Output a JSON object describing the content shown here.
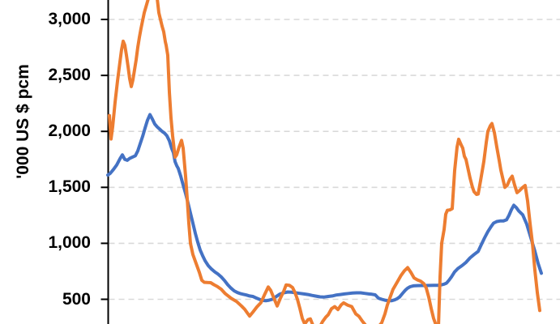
{
  "chart_data": {
    "type": "line",
    "title": "",
    "title_visible": false,
    "legend_visible": false,
    "ylabel": "'000 US $ pcm",
    "xlabel": "",
    "x_axis": {
      "labels_visible": false,
      "x_unit": "screenshot pixel column (x-axis tick labels are cropped out of view)"
    },
    "y_axis": {
      "tick_labels": [
        "3,000",
        "2,500",
        "2,000",
        "1,500",
        "1,000",
        "500"
      ],
      "tick_values": [
        3000,
        2500,
        2000,
        1500,
        1000,
        500
      ],
      "visible_value_range": [
        280,
        3175
      ]
    },
    "grid": {
      "horizontal": true,
      "vertical": false,
      "style": "dashed",
      "color": "#d9d9d9"
    },
    "axis_color": "#000000",
    "series": [
      {
        "name": "blue",
        "color": "#4472C4",
        "points": [
          [
            133,
            1610
          ],
          [
            136,
            1625
          ],
          [
            140,
            1660
          ],
          [
            144,
            1700
          ],
          [
            148,
            1755
          ],
          [
            151,
            1790
          ],
          [
            154,
            1750
          ],
          [
            157,
            1742
          ],
          [
            160,
            1758
          ],
          [
            164,
            1772
          ],
          [
            167,
            1782
          ],
          [
            170,
            1825
          ],
          [
            173,
            1890
          ],
          [
            176,
            1955
          ],
          [
            179,
            2030
          ],
          [
            182,
            2100
          ],
          [
            185,
            2150
          ],
          [
            188,
            2110
          ],
          [
            191,
            2065
          ],
          [
            194,
            2040
          ],
          [
            197,
            2020
          ],
          [
            200,
            2000
          ],
          [
            203,
            1985
          ],
          [
            206,
            1960
          ],
          [
            209,
            1915
          ],
          [
            212,
            1845
          ],
          [
            214,
            1810
          ],
          [
            216,
            1730
          ],
          [
            218,
            1695
          ],
          [
            220,
            1668
          ],
          [
            223,
            1600
          ],
          [
            226,
            1520
          ],
          [
            229,
            1445
          ],
          [
            232,
            1360
          ],
          [
            235,
            1270
          ],
          [
            238,
            1180
          ],
          [
            241,
            1090
          ],
          [
            244,
            1010
          ],
          [
            247,
            940
          ],
          [
            250,
            890
          ],
          [
            253,
            845
          ],
          [
            257,
            800
          ],
          [
            261,
            770
          ],
          [
            265,
            745
          ],
          [
            269,
            725
          ],
          [
            273,
            700
          ],
          [
            277,
            668
          ],
          [
            281,
            630
          ],
          [
            285,
            600
          ],
          [
            289,
            575
          ],
          [
            293,
            560
          ],
          [
            297,
            550
          ],
          [
            300,
            545
          ],
          [
            304,
            538
          ],
          [
            308,
            530
          ],
          [
            312,
            525
          ],
          [
            316,
            512
          ],
          [
            320,
            500
          ],
          [
            324,
            490
          ],
          [
            328,
            487
          ],
          [
            332,
            492
          ],
          [
            336,
            500
          ],
          [
            340,
            520
          ],
          [
            345,
            545
          ],
          [
            350,
            558
          ],
          [
            355,
            565
          ],
          [
            360,
            563
          ],
          [
            365,
            558
          ],
          [
            370,
            553
          ],
          [
            375,
            548
          ],
          [
            380,
            543
          ],
          [
            385,
            535
          ],
          [
            390,
            528
          ],
          [
            395,
            522
          ],
          [
            400,
            520
          ],
          [
            405,
            525
          ],
          [
            410,
            530
          ],
          [
            415,
            538
          ],
          [
            420,
            543
          ],
          [
            425,
            548
          ],
          [
            430,
            552
          ],
          [
            435,
            556
          ],
          [
            440,
            558
          ],
          [
            445,
            558
          ],
          [
            450,
            553
          ],
          [
            455,
            548
          ],
          [
            459,
            545
          ],
          [
            463,
            540
          ],
          [
            467,
            510
          ],
          [
            471,
            500
          ],
          [
            475,
            492
          ],
          [
            479,
            488
          ],
          [
            483,
            487
          ],
          [
            487,
            495
          ],
          [
            490,
            505
          ],
          [
            493,
            520
          ],
          [
            497,
            555
          ],
          [
            500,
            580
          ],
          [
            503,
            600
          ],
          [
            506,
            612
          ],
          [
            510,
            620
          ],
          [
            515,
            622
          ],
          [
            520,
            623
          ],
          [
            525,
            623
          ],
          [
            530,
            624
          ],
          [
            535,
            625
          ],
          [
            540,
            625
          ],
          [
            544,
            628
          ],
          [
            548,
            635
          ],
          [
            551,
            645
          ],
          [
            554,
            670
          ],
          [
            557,
            700
          ],
          [
            561,
            745
          ],
          [
            565,
            775
          ],
          [
            570,
            800
          ],
          [
            575,
            830
          ],
          [
            580,
            870
          ],
          [
            585,
            900
          ],
          [
            590,
            928
          ],
          [
            594,
            990
          ],
          [
            598,
            1050
          ],
          [
            602,
            1105
          ],
          [
            606,
            1150
          ],
          [
            609,
            1180
          ],
          [
            613,
            1195
          ],
          [
            617,
            1200
          ],
          [
            621,
            1200
          ],
          [
            625,
            1210
          ],
          [
            628,
            1250
          ],
          [
            631,
            1300
          ],
          [
            634,
            1340
          ],
          [
            637,
            1320
          ],
          [
            640,
            1290
          ],
          [
            645,
            1255
          ],
          [
            650,
            1170
          ],
          [
            655,
            1050
          ],
          [
            660,
            930
          ],
          [
            664,
            820
          ],
          [
            668,
            732
          ]
        ]
      },
      {
        "name": "orange",
        "color": "#ED7D31",
        "points": [
          [
            135,
            2142
          ],
          [
            137,
            1932
          ],
          [
            139,
            2040
          ],
          [
            142,
            2260
          ],
          [
            145,
            2450
          ],
          [
            148,
            2620
          ],
          [
            150,
            2730
          ],
          [
            152,
            2805
          ],
          [
            154,
            2770
          ],
          [
            156,
            2680
          ],
          [
            158,
            2580
          ],
          [
            160,
            2470
          ],
          [
            162,
            2400
          ],
          [
            164,
            2460
          ],
          [
            166,
            2550
          ],
          [
            168,
            2640
          ],
          [
            170,
            2750
          ],
          [
            172,
            2840
          ],
          [
            174,
            2920
          ],
          [
            176,
            2990
          ],
          [
            178,
            3060
          ],
          [
            180,
            3110
          ],
          [
            183,
            3185
          ],
          [
            186,
            3290
          ],
          [
            189,
            3340
          ],
          [
            192,
            3260
          ],
          [
            194,
            3185
          ],
          [
            196,
            3060
          ],
          [
            198,
            3000
          ],
          [
            200,
            2940
          ],
          [
            202,
            2890
          ],
          [
            204,
            2800
          ],
          [
            205,
            2770
          ],
          [
            207,
            2680
          ],
          [
            209,
            2350
          ],
          [
            211,
            2120
          ],
          [
            213,
            1960
          ],
          [
            216,
            1770
          ],
          [
            218,
            1790
          ],
          [
            221,
            1860
          ],
          [
            224,
            1920
          ],
          [
            226,
            1850
          ],
          [
            229,
            1600
          ],
          [
            231,
            1400
          ],
          [
            233,
            1180
          ],
          [
            235,
            1000
          ],
          [
            238,
            900
          ],
          [
            242,
            820
          ],
          [
            246,
            740
          ],
          [
            249,
            670
          ],
          [
            252,
            652
          ],
          [
            256,
            650
          ],
          [
            260,
            648
          ],
          [
            264,
            630
          ],
          [
            268,
            615
          ],
          [
            273,
            590
          ],
          [
            278,
            550
          ],
          [
            285,
            510
          ],
          [
            292,
            480
          ],
          [
            298,
            440
          ],
          [
            302,
            410
          ],
          [
            305,
            380
          ],
          [
            308,
            350
          ],
          [
            312,
            385
          ],
          [
            317,
            432
          ],
          [
            322,
            470
          ],
          [
            327,
            550
          ],
          [
            331,
            610
          ],
          [
            334,
            580
          ],
          [
            338,
            510
          ],
          [
            342,
            440
          ],
          [
            346,
            510
          ],
          [
            350,
            570
          ],
          [
            353,
            628
          ],
          [
            357,
            625
          ],
          [
            361,
            605
          ],
          [
            364,
            560
          ],
          [
            367,
            500
          ],
          [
            370,
            420
          ],
          [
            373,
            330
          ],
          [
            376,
            280
          ],
          [
            380,
            318
          ],
          [
            383,
            325
          ],
          [
            386,
            270
          ],
          [
            390,
            230
          ],
          [
            394,
            245
          ],
          [
            398,
            300
          ],
          [
            402,
            340
          ],
          [
            405,
            362
          ],
          [
            409,
            415
          ],
          [
            413,
            435
          ],
          [
            417,
            408
          ],
          [
            421,
            450
          ],
          [
            424,
            468
          ],
          [
            429,
            448
          ],
          [
            434,
            435
          ],
          [
            439,
            370
          ],
          [
            443,
            347
          ],
          [
            447,
            305
          ],
          [
            451,
            270
          ],
          [
            455,
            235
          ],
          [
            459,
            215
          ],
          [
            463,
            220
          ],
          [
            467,
            255
          ],
          [
            471,
            290
          ],
          [
            475,
            370
          ],
          [
            478,
            450
          ],
          [
            481,
            510
          ],
          [
            485,
            590
          ],
          [
            490,
            652
          ],
          [
            495,
            715
          ],
          [
            499,
            755
          ],
          [
            503,
            783
          ],
          [
            507,
            740
          ],
          [
            511,
            690
          ],
          [
            515,
            674
          ],
          [
            519,
            662
          ],
          [
            523,
            640
          ],
          [
            526,
            600
          ],
          [
            529,
            520
          ],
          [
            532,
            420
          ],
          [
            535,
            330
          ],
          [
            538,
            270
          ],
          [
            541,
            250
          ],
          [
            543,
            700
          ],
          [
            545,
            1000
          ],
          [
            548,
            1124
          ],
          [
            550,
            1260
          ],
          [
            552,
            1295
          ],
          [
            555,
            1298
          ],
          [
            558,
            1310
          ],
          [
            561,
            1650
          ],
          [
            564,
            1860
          ],
          [
            566,
            1930
          ],
          [
            569,
            1880
          ],
          [
            571,
            1850
          ],
          [
            573,
            1778
          ],
          [
            575,
            1750
          ],
          [
            578,
            1650
          ],
          [
            580,
            1583
          ],
          [
            583,
            1500
          ],
          [
            585,
            1460
          ],
          [
            588,
            1437
          ],
          [
            590,
            1440
          ],
          [
            593,
            1560
          ],
          [
            597,
            1730
          ],
          [
            600,
            1900
          ],
          [
            602,
            2000
          ],
          [
            605,
            2050
          ],
          [
            607,
            2070
          ],
          [
            610,
            1990
          ],
          [
            613,
            1860
          ],
          [
            616,
            1740
          ],
          [
            618,
            1655
          ],
          [
            621,
            1560
          ],
          [
            623,
            1500
          ],
          [
            626,
            1520
          ],
          [
            629,
            1570
          ],
          [
            632,
            1600
          ],
          [
            635,
            1520
          ],
          [
            638,
            1452
          ],
          [
            641,
            1470
          ],
          [
            645,
            1500
          ],
          [
            648,
            1517
          ],
          [
            651,
            1380
          ],
          [
            654,
            1180
          ],
          [
            657,
            1000
          ],
          [
            660,
            760
          ],
          [
            663,
            560
          ],
          [
            666,
            400
          ]
        ]
      }
    ]
  }
}
